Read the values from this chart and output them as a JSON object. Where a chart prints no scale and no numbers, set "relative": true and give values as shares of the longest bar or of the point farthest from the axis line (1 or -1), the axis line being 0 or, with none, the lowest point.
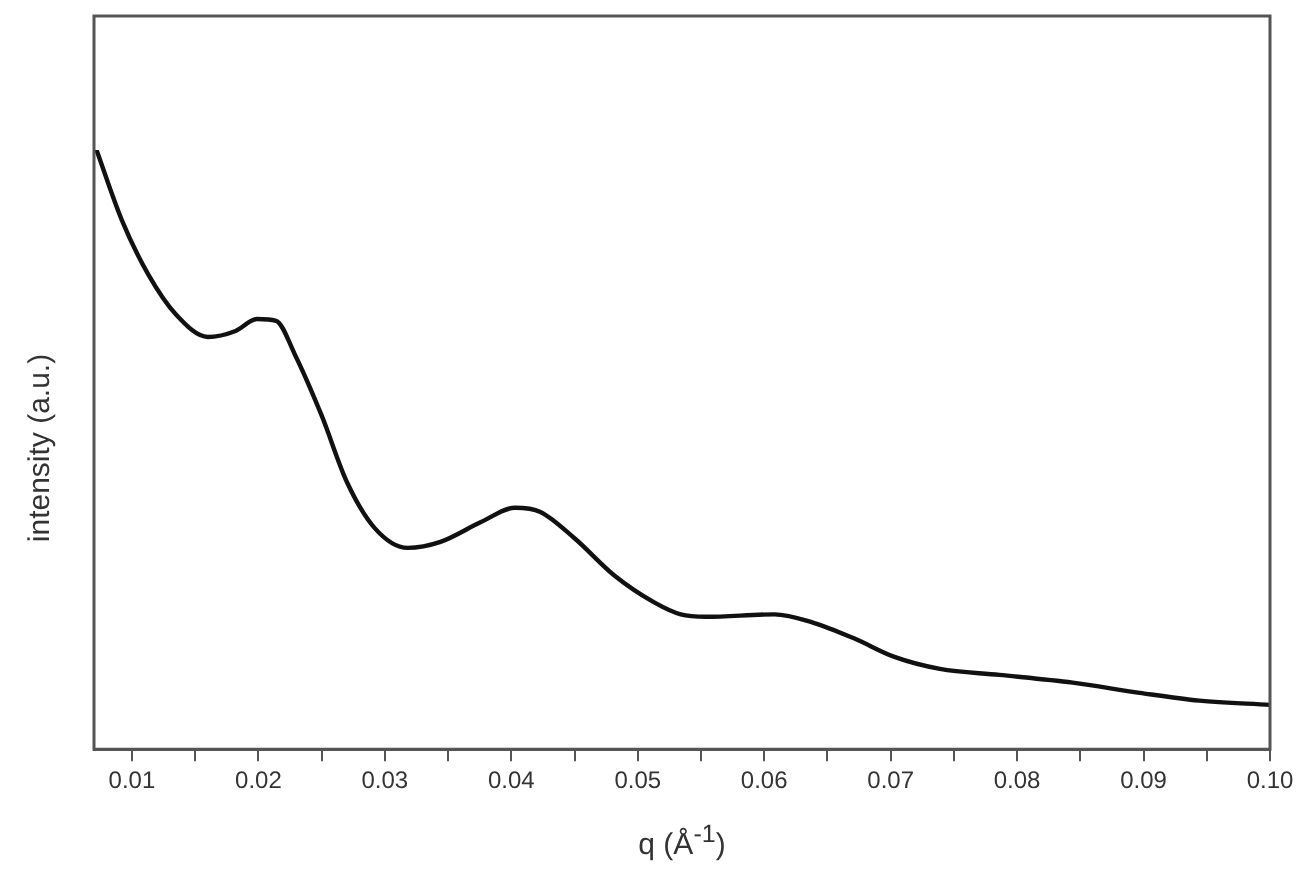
{
  "chart_data": {
    "type": "line",
    "xlabel": "q (Å$^{-1}$)",
    "ylabel": "intensity (a.u.)",
    "relative": true,
    "color": "#111111",
    "marker": "none",
    "line_style": "solid",
    "legend": false,
    "grid": false,
    "tick_labels": "x",
    "xlim": [
      0.007,
      0.1
    ],
    "xticks": [
      0.01,
      {
        "value": 0.015,
        "label": null
      },
      0.02,
      {
        "value": 0.025,
        "label": null
      },
      0.03,
      {
        "value": 0.035,
        "label": null
      },
      0.04,
      {
        "value": 0.045,
        "label": null
      },
      0.05,
      {
        "value": 0.055,
        "label": null
      },
      0.06,
      {
        "value": 0.065,
        "label": null
      },
      0.07,
      {
        "value": 0.075,
        "label": null
      },
      0.08,
      {
        "value": 0.085,
        "label": null
      },
      0.09,
      {
        "value": 0.095,
        "label": null
      },
      {
        "value": 0.1,
        "label": "0.10"
      }
    ],
    "x": [
      0.0072,
      0.0092,
      0.0113,
      0.0135,
      0.016,
      0.0182,
      0.0199,
      0.0214,
      0.0229,
      0.025,
      0.027,
      0.0292,
      0.0318,
      0.0344,
      0.0376,
      0.0403,
      0.0423,
      0.045,
      0.0482,
      0.0513,
      0.0534,
      0.0554,
      0.0608,
      0.0639,
      0.0671,
      0.0703,
      0.0739,
      0.0786,
      0.0844,
      0.0897,
      0.0944,
      0.1
    ],
    "values": [
      1.0,
      0.883,
      0.792,
      0.725,
      0.688,
      0.698,
      0.718,
      0.715,
      0.658,
      0.557,
      0.446,
      0.369,
      0.336,
      0.346,
      0.379,
      0.403,
      0.396,
      0.352,
      0.289,
      0.245,
      0.225,
      0.221,
      0.225,
      0.211,
      0.185,
      0.154,
      0.134,
      0.124,
      0.111,
      0.094,
      0.081,
      0.074
    ]
  }
}
